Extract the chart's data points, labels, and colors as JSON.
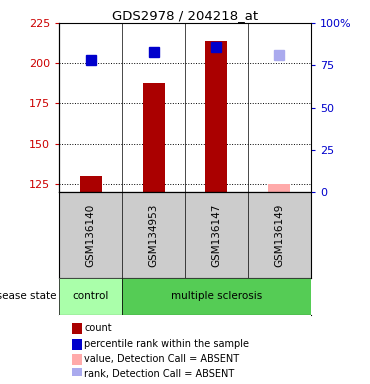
{
  "title": "GDS2978 / 204218_at",
  "samples": [
    "GSM136140",
    "GSM134953",
    "GSM136147",
    "GSM136149"
  ],
  "count_values": [
    130,
    188,
    214,
    null
  ],
  "percentile_values": [
    202,
    207,
    210,
    null
  ],
  "count_absent": [
    null,
    null,
    null,
    125
  ],
  "percentile_absent": [
    null,
    null,
    null,
    205
  ],
  "ylim_left": [
    120,
    225
  ],
  "ylim_right": [
    0,
    100
  ],
  "yticks_left": [
    125,
    150,
    175,
    200,
    225
  ],
  "yticks_right": [
    0,
    25,
    50,
    75,
    100
  ],
  "bar_width": 0.35,
  "bar_color_present": "#aa0000",
  "bar_color_absent": "#ffaaaa",
  "rank_color_present": "#0000cc",
  "rank_color_absent": "#aaaaee",
  "marker_size": 7,
  "control_color": "#aaffaa",
  "ms_color": "#55cc55",
  "gray_bg": "#cccccc",
  "legend_items": [
    {
      "label": "count",
      "color": "#aa0000"
    },
    {
      "label": "percentile rank within the sample",
      "color": "#0000cc"
    },
    {
      "label": "value, Detection Call = ABSENT",
      "color": "#ffaaaa"
    },
    {
      "label": "rank, Detection Call = ABSENT",
      "color": "#aaaaee"
    }
  ]
}
